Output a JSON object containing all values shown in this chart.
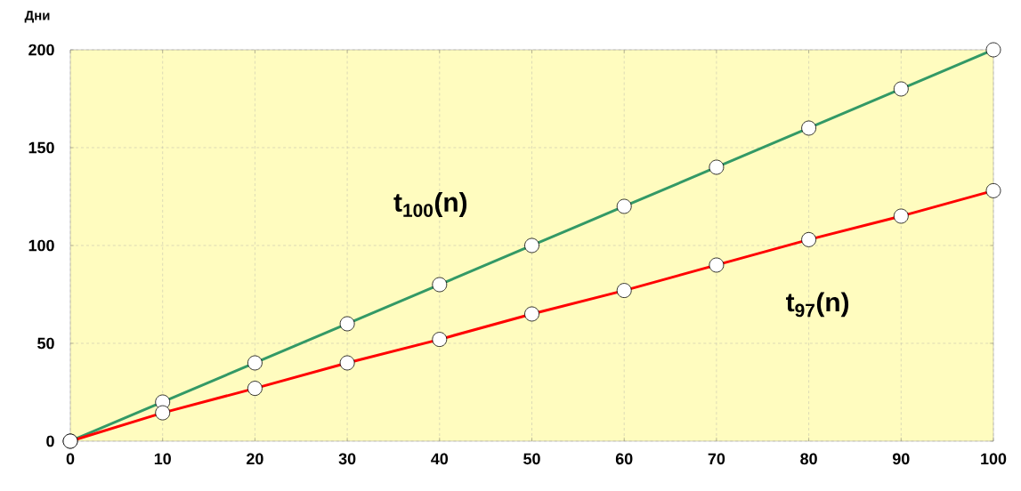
{
  "chart_data": {
    "type": "line",
    "ylabel": "Дни",
    "x": [
      0,
      10,
      20,
      30,
      40,
      50,
      60,
      70,
      80,
      90,
      100
    ],
    "series": [
      {
        "name": "t$_{100}$(n)",
        "color": "#339966",
        "values": [
          0,
          20,
          40,
          60,
          80,
          100,
          120,
          140,
          160,
          180,
          200
        ]
      },
      {
        "name": "t$_{97}$(n)",
        "color": "#ff0000",
        "values": [
          0,
          14.5,
          27,
          40,
          52,
          65,
          77,
          90,
          103,
          115,
          128
        ]
      }
    ],
    "xlim": [
      0,
      100
    ],
    "xticks": [
      0,
      10,
      20,
      30,
      40,
      50,
      60,
      70,
      80,
      90,
      100
    ],
    "ylim": [
      0,
      200
    ],
    "yticks": [
      0,
      50,
      100,
      150,
      200
    ],
    "grid": true,
    "marker": "circle",
    "line_style": "solid"
  }
}
